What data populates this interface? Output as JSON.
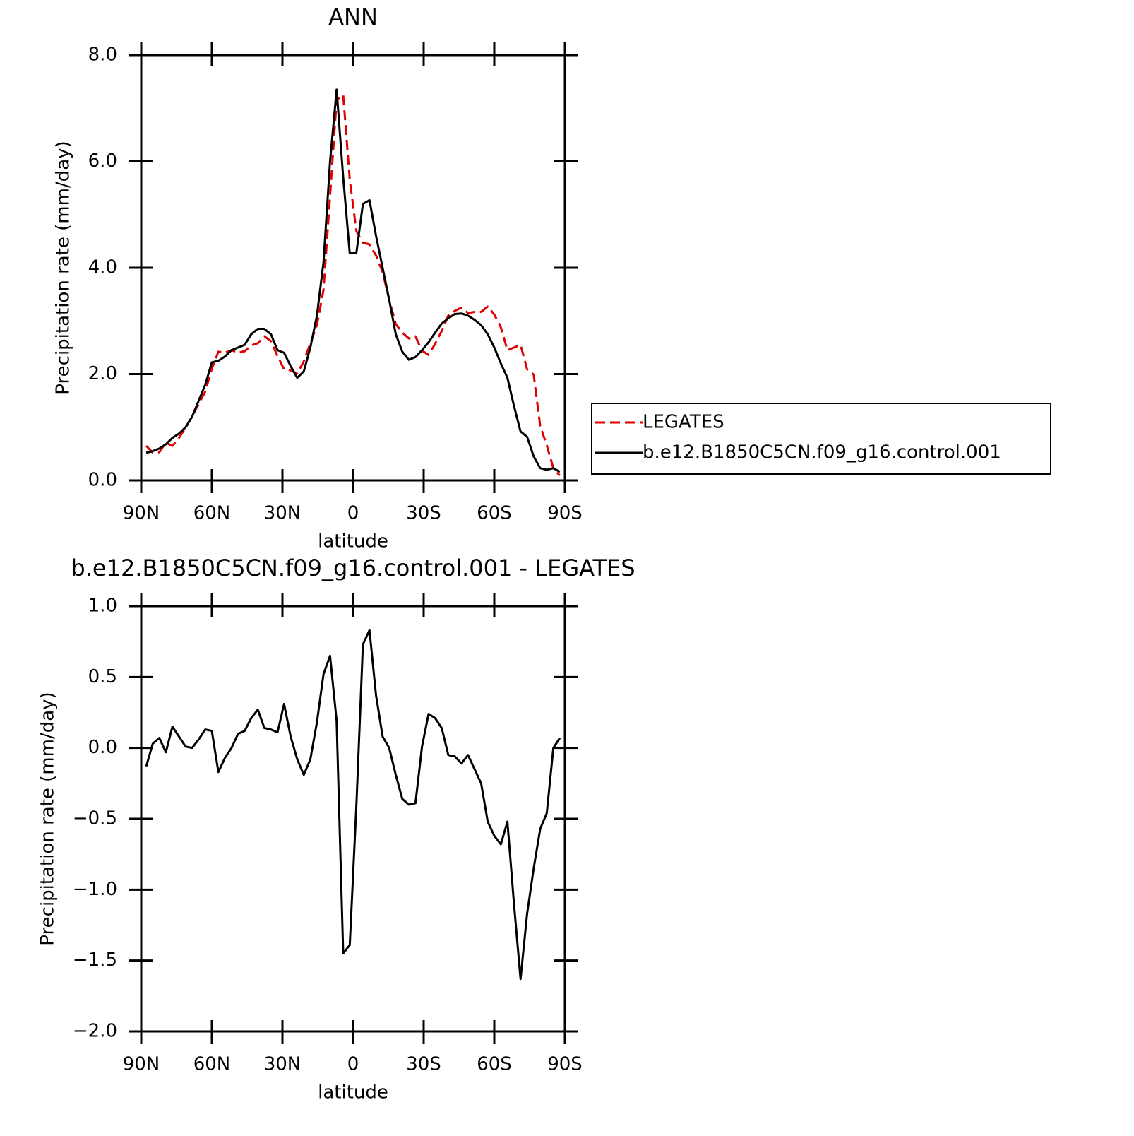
{
  "chart_data": [
    {
      "type": "line",
      "title": "ANN",
      "xlabel": "latitude",
      "ylabel": "Precipitation rate (mm/day)",
      "x": [
        87.86,
        85.1,
        82.31,
        79.53,
        76.74,
        73.95,
        71.16,
        68.37,
        65.58,
        62.79,
        60,
        57.21,
        54.42,
        51.63,
        48.84,
        46.05,
        43.26,
        40.47,
        37.67,
        34.88,
        32.09,
        29.3,
        26.51,
        23.72,
        20.93,
        18.14,
        15.35,
        12.56,
        9.77,
        6.98,
        4.19,
        1.4,
        -1.4,
        -4.19,
        -6.98,
        -9.77,
        -12.56,
        -15.35,
        -18.14,
        -20.93,
        -23.72,
        -26.51,
        -29.3,
        -32.09,
        -34.88,
        -37.67,
        -40.47,
        -43.26,
        -46.05,
        -48.84,
        -51.63,
        -54.42,
        -57.21,
        -60,
        -62.79,
        -65.58,
        -68.37,
        -71.16,
        -73.95,
        -76.74,
        -79.53,
        -82.31,
        -85.1,
        -87.86
      ],
      "series": [
        {
          "name": "LEGATES",
          "color": "#e00000",
          "dashed": true,
          "values": [
            0.65,
            0.52,
            0.53,
            0.71,
            0.65,
            0.8,
            0.99,
            1.2,
            1.44,
            1.67,
            2.1,
            2.42,
            2.4,
            2.45,
            2.4,
            2.43,
            2.54,
            2.58,
            2.71,
            2.62,
            2.34,
            2.09,
            2.07,
            2.01,
            2.24,
            2.58,
            2.92,
            3.58,
            5.35,
            7.16,
            7.25,
            5.66,
            4.69,
            4.47,
            4.44,
            4.23,
            3.92,
            3.4,
            2.94,
            2.78,
            2.67,
            2.71,
            2.44,
            2.36,
            2.57,
            2.81,
            3.1,
            3.19,
            3.25,
            3.15,
            3.17,
            3.17,
            3.27,
            3.12,
            2.88,
            2.45,
            2.5,
            2.55,
            2.09,
            1.99,
            1.02,
            0.66,
            0.23,
            0.09
          ]
        },
        {
          "name": "b.e12.B1850C5CN.f09_g16.control.001",
          "color": "#000000",
          "dashed": false,
          "values": [
            0.52,
            0.55,
            0.6,
            0.68,
            0.8,
            0.88,
            1.0,
            1.2,
            1.5,
            1.8,
            2.22,
            2.25,
            2.33,
            2.45,
            2.5,
            2.55,
            2.75,
            2.85,
            2.85,
            2.75,
            2.45,
            2.4,
            2.15,
            1.93,
            2.05,
            2.5,
            3.1,
            4.1,
            6.0,
            7.35,
            5.7,
            4.27,
            4.28,
            5.2,
            5.27,
            4.6,
            4.0,
            3.4,
            2.75,
            2.42,
            2.27,
            2.32,
            2.45,
            2.6,
            2.78,
            2.95,
            3.05,
            3.13,
            3.14,
            3.1,
            3.02,
            2.92,
            2.75,
            2.5,
            2.2,
            1.93,
            1.4,
            0.92,
            0.82,
            0.45,
            0.23,
            0.2,
            0.23,
            0.16
          ]
        }
      ],
      "xlim": [
        90,
        -90
      ],
      "xticks": [
        {
          "value": 90,
          "label": "90N"
        },
        {
          "value": 60,
          "label": "60N"
        },
        {
          "value": 30,
          "label": "30N"
        },
        0,
        {
          "value": -30,
          "label": "30S"
        },
        {
          "value": -60,
          "label": "60S"
        },
        {
          "value": -90,
          "label": "90S"
        }
      ],
      "ylim": [
        0,
        8
      ],
      "yticks": [
        {
          "value": 0,
          "label": "0.0"
        },
        {
          "value": 2,
          "label": "2.0"
        },
        {
          "value": 4,
          "label": "4.0"
        },
        {
          "value": 6,
          "label": "6.0"
        },
        {
          "value": 8,
          "label": "8.0"
        }
      ],
      "legend": "right"
    },
    {
      "type": "line",
      "title": "b.e12.B1850C5CN.f09_g16.control.001 - LEGATES",
      "xlabel": "latitude",
      "ylabel": "Precipitation rate (mm/day)",
      "x": [
        87.86,
        85.1,
        82.31,
        79.53,
        76.74,
        73.95,
        71.16,
        68.37,
        65.58,
        62.79,
        60,
        57.21,
        54.42,
        51.63,
        48.84,
        46.05,
        43.26,
        40.47,
        37.67,
        34.88,
        32.09,
        29.3,
        26.51,
        23.72,
        20.93,
        18.14,
        15.35,
        12.56,
        9.77,
        6.98,
        4.19,
        1.4,
        -1.4,
        -4.19,
        -6.98,
        -9.77,
        -12.56,
        -15.35,
        -18.14,
        -20.93,
        -23.72,
        -26.51,
        -29.3,
        -32.09,
        -34.88,
        -37.67,
        -40.47,
        -43.26,
        -46.05,
        -48.84,
        -51.63,
        -54.42,
        -57.21,
        -60,
        -62.79,
        -65.58,
        -68.37,
        -71.16,
        -73.95,
        -76.74,
        -79.53,
        -82.31,
        -85.1,
        -87.86
      ],
      "color": "#000000",
      "values": [
        -0.13,
        0.03,
        0.07,
        -0.03,
        0.15,
        0.08,
        0.01,
        0.0,
        0.06,
        0.13,
        0.12,
        -0.17,
        -0.07,
        0.0,
        0.1,
        0.12,
        0.21,
        0.27,
        0.14,
        0.13,
        0.11,
        0.31,
        0.08,
        -0.08,
        -0.19,
        -0.08,
        0.18,
        0.52,
        0.65,
        0.19,
        -1.45,
        -1.39,
        -0.41,
        0.73,
        0.83,
        0.37,
        0.08,
        0.0,
        -0.19,
        -0.36,
        -0.4,
        -0.39,
        0.01,
        0.24,
        0.21,
        0.14,
        -0.05,
        -0.06,
        -0.11,
        -0.05,
        -0.15,
        -0.25,
        -0.52,
        -0.62,
        -0.68,
        -0.52,
        -1.1,
        -1.63,
        -1.17,
        -0.85,
        -0.57,
        -0.46,
        0.0,
        0.07
      ],
      "xlim": [
        90,
        -90
      ],
      "xticks": [
        {
          "value": 90,
          "label": "90N"
        },
        {
          "value": 60,
          "label": "60N"
        },
        {
          "value": 30,
          "label": "30N"
        },
        0,
        {
          "value": -30,
          "label": "30S"
        },
        {
          "value": -60,
          "label": "60S"
        },
        {
          "value": -90,
          "label": "90S"
        }
      ],
      "ylim": [
        -2,
        1
      ],
      "yticks": [
        {
          "value": 1,
          "label": "1.0"
        },
        {
          "value": 0.5,
          "label": "0.5"
        },
        {
          "value": 0,
          "label": "0.0"
        },
        {
          "value": -0.5,
          "label": "−0.5"
        },
        {
          "value": -1,
          "label": "−1.0"
        },
        {
          "value": -1.5,
          "label": "−1.5"
        },
        {
          "value": -2,
          "label": "−2.0"
        }
      ]
    }
  ]
}
